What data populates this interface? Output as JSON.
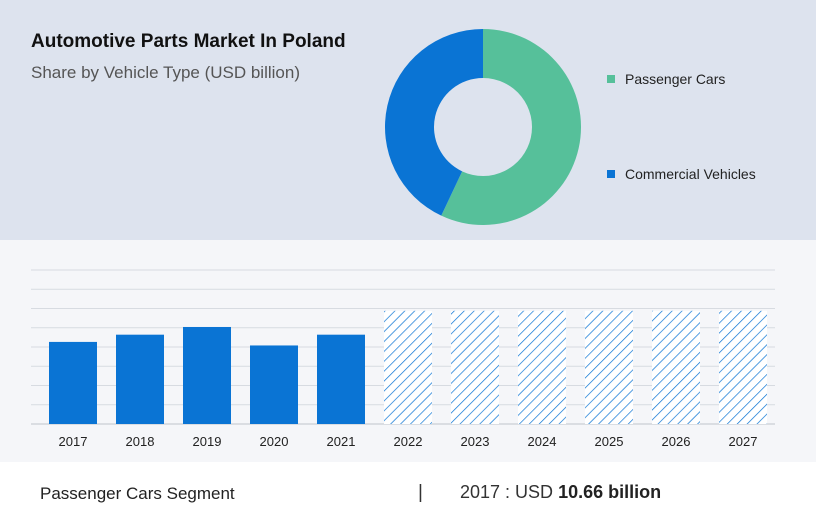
{
  "header": {
    "title": "Automotive Parts Market In Poland",
    "subtitle": "Share by Vehicle Type (USD billion)"
  },
  "legend": {
    "items": [
      {
        "label": "Passenger Cars",
        "color": "#56c09a"
      },
      {
        "label": "Commercial Vehicles",
        "color": "#0a74d4"
      }
    ]
  },
  "footer": {
    "segment": "Passenger Cars Segment",
    "separator": "|",
    "stat_prefix": "2017 : USD",
    "stat_value": "10.66 billion"
  },
  "chart_data": [
    {
      "type": "pie",
      "subtype": "donut",
      "categories": [
        "Passenger Cars",
        "Commercial Vehicles"
      ],
      "values": [
        57,
        43
      ],
      "colors": [
        "#56c09a",
        "#0a74d4"
      ],
      "title": "Automotive Parts Market In Poland",
      "subtitle": "Share by Vehicle Type (USD billion)",
      "legend": "right"
    },
    {
      "type": "bar",
      "categories": [
        "2017",
        "2018",
        "2019",
        "2020",
        "2021",
        "2022",
        "2023",
        "2024",
        "2025",
        "2026",
        "2027"
      ],
      "values": [
        10.66,
        11.6,
        12.6,
        10.2,
        11.6,
        14.7,
        14.7,
        14.7,
        14.7,
        14.7,
        14.7
      ],
      "forecast_from": "2022",
      "forecast_style": "hatched",
      "bar_color": "#0a74d4",
      "ylim": [
        0,
        20
      ],
      "grid": true,
      "y_tick_labels_shown": false,
      "xlabel": "",
      "ylabel": ""
    }
  ]
}
